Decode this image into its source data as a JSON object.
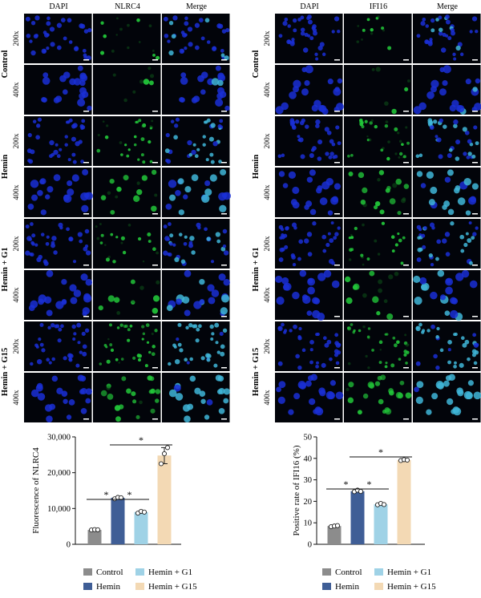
{
  "micrographs": {
    "left": {
      "columns": [
        "DAPI",
        "NLRC4",
        "Merge"
      ]
    },
    "right": {
      "columns": [
        "DAPI",
        "IFI16",
        "Merge"
      ]
    },
    "groups": [
      "Control",
      "Hemin",
      "Hemin + G1",
      "Hemin + G15"
    ],
    "magnifications": [
      "200x",
      "400x"
    ],
    "left_green_intensity": [
      0.12,
      0.45,
      0.4,
      0.85
    ],
    "right_green_intensity": [
      0.2,
      0.7,
      0.45,
      0.8
    ]
  },
  "colors": {
    "dapi": "#1a2fd6",
    "green": "#22c83a",
    "merge_cyan": "#3fb6d8",
    "Control": "#8c8c8c",
    "Hemin": "#3f5e96",
    "Hemin + G1": "#9fd2e6",
    "Hemin + G15": "#f3d9b4"
  },
  "chart_data": [
    {
      "type": "bar",
      "ylabel": "Fluorescence of NLRC4",
      "categories": [
        "Control",
        "Hemin",
        "Hemin + G1",
        "Hemin + G15"
      ],
      "values": [
        4000,
        13000,
        9000,
        24800
      ],
      "points": [
        [
          4000,
          4100,
          4050
        ],
        [
          12700,
          13100,
          13000
        ],
        [
          8700,
          9200,
          9000
        ],
        [
          22500,
          25300,
          27000
        ]
      ],
      "ylim": [
        0,
        30000
      ],
      "yticks": [
        "0",
        "10,000",
        "20,000",
        "30,000"
      ],
      "significance": [
        {
          "from": 1,
          "to": 2,
          "label": "*"
        },
        {
          "from": 2,
          "to": 3,
          "label": "*"
        },
        {
          "from": 2,
          "to": 4,
          "label": "*"
        }
      ],
      "legend": [
        "Control",
        "Hemin + G1",
        "Hemin",
        "Hemin + G15"
      ]
    },
    {
      "type": "bar",
      "ylabel": "Positive rate of IFI16 (%)",
      "categories": [
        "Control",
        "Hemin",
        "Hemin + G1",
        "Hemin + G15"
      ],
      "values": [
        8.5,
        24.7,
        18.6,
        39.2
      ],
      "points": [
        [
          8.2,
          8.5,
          8.7
        ],
        [
          24.5,
          25.2,
          24.6
        ],
        [
          18.4,
          19.0,
          18.5
        ],
        [
          39.0,
          39.4,
          39.2
        ]
      ],
      "ylim": [
        0,
        50
      ],
      "yticks": [
        "0",
        "10",
        "20",
        "30",
        "40",
        "50"
      ],
      "significance": [
        {
          "from": 1,
          "to": 2,
          "label": "*"
        },
        {
          "from": 2,
          "to": 3,
          "label": "*"
        },
        {
          "from": 2,
          "to": 4,
          "label": "*"
        }
      ],
      "legend": [
        "Control",
        "Hemin + G1",
        "Hemin",
        "Hemin + G15"
      ]
    }
  ]
}
